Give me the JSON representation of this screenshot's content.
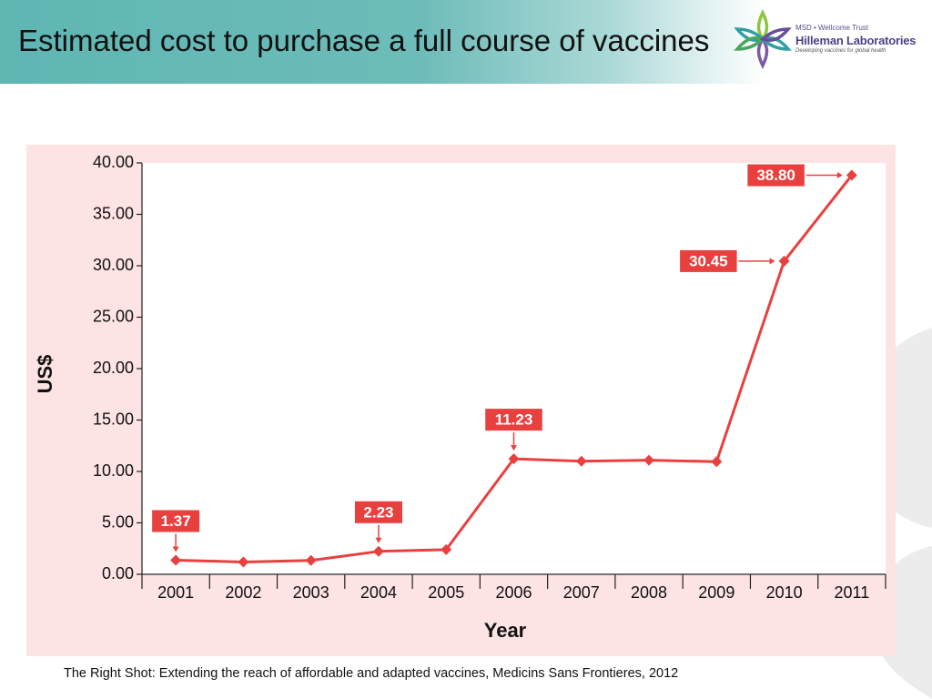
{
  "slide": {
    "title": "Estimated cost to purchase a full course of vaccines",
    "caption": "The Right Shot: Extending the reach of affordable and adapted vaccines, Medicins Sans Frontieres, 2012"
  },
  "logo": {
    "line1": "MSD • Wellcome Trust",
    "line2": "Hilleman Laboratories",
    "line3": "Developing vaccines for global health"
  },
  "colors": {
    "series": "#e8403f",
    "chart_background": "#fde3e3",
    "plot_background": "#ffffff",
    "header_teal": "#5fb6b3"
  },
  "chart_data": {
    "type": "line",
    "title": "",
    "xlabel": "Year",
    "ylabel": "US$",
    "categories": [
      "2001",
      "2002",
      "2003",
      "2004",
      "2005",
      "2006",
      "2007",
      "2008",
      "2009",
      "2010",
      "2011"
    ],
    "series": [
      {
        "values": [
          1.37,
          1.2,
          1.35,
          2.23,
          2.4,
          11.23,
          11.0,
          11.1,
          10.95,
          30.45,
          38.8
        ]
      }
    ],
    "ylim": [
      0,
      40
    ],
    "yticks": [
      "0.00",
      "5.00",
      "10.00",
      "15.00",
      "20.00",
      "25.00",
      "30.00",
      "35.00",
      "40.00"
    ],
    "grid": false,
    "legend": "none",
    "annotations": [
      {
        "index": 0,
        "label": "1.37",
        "side": "above"
      },
      {
        "index": 3,
        "label": "2.23",
        "side": "above"
      },
      {
        "index": 5,
        "label": "11.23",
        "side": "above"
      },
      {
        "index": 9,
        "label": "30.45",
        "side": "left"
      },
      {
        "index": 10,
        "label": "38.80",
        "side": "left"
      }
    ]
  }
}
